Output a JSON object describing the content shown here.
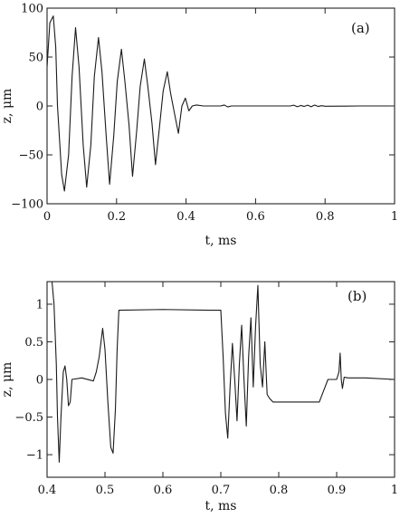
{
  "chart_data": [
    {
      "type": "line",
      "panel_label": "(a)",
      "xlabel": "t, ms",
      "ylabel": "z, μm",
      "xlim": [
        0,
        1
      ],
      "ylim": [
        -100,
        100
      ],
      "xticks": [
        "0",
        "0.2",
        "0.4",
        "0.6",
        "0.8",
        "1"
      ],
      "yticks": [
        "100",
        "50",
        "0",
        "−50",
        "−100"
      ],
      "xtick_values": [
        0,
        0.2,
        0.4,
        0.6,
        0.8,
        1
      ],
      "ytick_values": [
        100,
        50,
        0,
        -50,
        -100
      ],
      "grid": false,
      "x": [
        0.0,
        0.008,
        0.018,
        0.025,
        0.03,
        0.042,
        0.05,
        0.062,
        0.072,
        0.082,
        0.092,
        0.104,
        0.114,
        0.126,
        0.136,
        0.148,
        0.158,
        0.17,
        0.18,
        0.192,
        0.202,
        0.214,
        0.224,
        0.236,
        0.246,
        0.258,
        0.268,
        0.28,
        0.29,
        0.302,
        0.312,
        0.324,
        0.334,
        0.346,
        0.356,
        0.368,
        0.378,
        0.388,
        0.398,
        0.408,
        0.418,
        0.43,
        0.45,
        0.5,
        0.51,
        0.52,
        0.53,
        0.6,
        0.7,
        0.71,
        0.72,
        0.73,
        0.74,
        0.75,
        0.76,
        0.77,
        0.78,
        0.79,
        0.8,
        0.85,
        0.9,
        0.95,
        1.0
      ],
      "y": [
        40,
        85,
        92,
        60,
        0,
        -70,
        -87,
        -50,
        30,
        80,
        40,
        -40,
        -83,
        -40,
        30,
        70,
        35,
        -30,
        -80,
        -30,
        25,
        58,
        25,
        -20,
        -72,
        -25,
        20,
        48,
        20,
        -18,
        -60,
        -20,
        15,
        35,
        12,
        -10,
        -28,
        0,
        8,
        -5,
        0,
        1,
        0,
        0,
        1,
        -1,
        0,
        0,
        0,
        0.8,
        -0.8,
        0.5,
        -0.5,
        0.8,
        -0.8,
        0.9,
        -0.5,
        0.3,
        -0.3,
        -0.2,
        0,
        0,
        0
      ]
    },
    {
      "type": "line",
      "panel_label": "(b)",
      "xlabel": "t, ms",
      "ylabel": "z, μm",
      "xlim": [
        0.4,
        1
      ],
      "ylim": [
        -1.3,
        1.3
      ],
      "xticks": [
        "0.4",
        "0.5",
        "0.6",
        "0.7",
        "0.8",
        "0.9",
        "1"
      ],
      "yticks": [
        "1",
        "0.5",
        "0",
        "−0.5",
        "−1"
      ],
      "xtick_values": [
        0.4,
        0.5,
        0.6,
        0.7,
        0.8,
        0.9,
        1
      ],
      "ytick_values": [
        1,
        0.5,
        0,
        -0.5,
        -1
      ],
      "grid": false,
      "x": [
        0.405,
        0.408,
        0.412,
        0.416,
        0.418,
        0.421,
        0.424,
        0.428,
        0.431,
        0.434,
        0.437,
        0.44,
        0.443,
        0.46,
        0.48,
        0.485,
        0.49,
        0.496,
        0.5,
        0.505,
        0.51,
        0.514,
        0.518,
        0.521,
        0.524,
        0.6,
        0.68,
        0.7,
        0.704,
        0.708,
        0.712,
        0.716,
        0.72,
        0.724,
        0.728,
        0.732,
        0.736,
        0.74,
        0.744,
        0.748,
        0.752,
        0.756,
        0.76,
        0.764,
        0.768,
        0.772,
        0.776,
        0.78,
        0.784,
        0.79,
        0.83,
        0.87,
        0.88,
        0.885,
        0.9,
        0.904,
        0.906,
        0.908,
        0.91,
        0.913,
        0.92,
        0.95,
        1.0
      ],
      "y": [
        1.35,
        1.35,
        1.0,
        0.2,
        -0.5,
        -1.1,
        -0.5,
        0.1,
        0.18,
        0.0,
        -0.35,
        -0.3,
        0.0,
        0.02,
        -0.02,
        0.1,
        0.3,
        0.68,
        0.4,
        -0.3,
        -0.9,
        -0.98,
        -0.4,
        0.4,
        0.92,
        0.93,
        0.92,
        0.92,
        0.3,
        -0.45,
        -0.78,
        -0.1,
        0.48,
        0.0,
        -0.55,
        0.2,
        0.72,
        0.0,
        -0.62,
        0.3,
        0.82,
        -0.1,
        0.7,
        1.25,
        0.2,
        -0.1,
        0.5,
        -0.2,
        -0.25,
        -0.3,
        -0.3,
        -0.3,
        -0.1,
        0.0,
        0.0,
        0.1,
        0.35,
        0.0,
        -0.12,
        0.03,
        0.02,
        0.02,
        0.0
      ]
    }
  ]
}
